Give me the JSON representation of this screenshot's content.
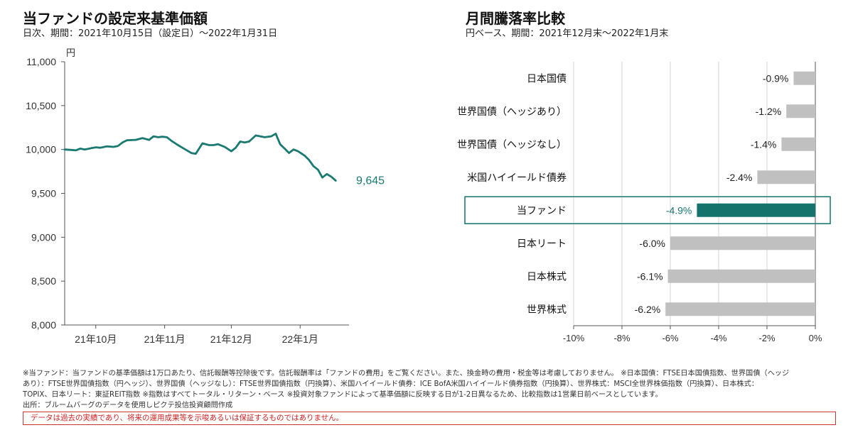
{
  "line_chart": {
    "title": "当ファンドの設定来基準価額",
    "subtitle": "日次、期間：2021年10月15日（設定日）～2022年1月31日",
    "unit": "円",
    "last_value_label": "9,645",
    "line_color": "#1a7a72"
  },
  "bar_chart": {
    "title": "月間騰落率比較",
    "subtitle": "円ベース、期間：2021年12月末～2022年1月末",
    "highlight_color": "#14736b",
    "bar_color": "#c0c0c0"
  },
  "notes": {
    "line1": "※当ファンド：当ファンドの基準価額は1万口あたり、信託報酬等控除後です。信託報酬率は「ファンドの費用」をご覧ください。また、換金時の費用・税金等は考慮しておりません。 ※日本国債：FTSE日本国債指数、世界国債（ヘッジ",
    "line2": "あり）：FTSE世界国債指数（円ヘッジ）、世界国債（ヘッジなし）：FTSE世界国債指数（円換算）、米国ハイイールド債券：ICE BofA米国ハイイールド債券指数（円換算）、世界株式：MSCI全世界株価指数（円換算）、日本株式：",
    "line3": "TOPIX、日本リート：東証REIT指数 ※指数はすべてトータル・リターン・ベース ※投資対象ファンドによって基準価額に反映する日が1-2日異なるため、比較指数は1営業日前ベースとしています。",
    "source": "出所：ブルームバーグのデータを使用しピクテ投信投資顧問作成",
    "disclaimer": "データは過去の実績であり、将来の運用成果等を示唆あるいは保証するものではありません。"
  },
  "chart_data": [
    {
      "type": "line",
      "title": "当ファンドの設定来基準価額",
      "ylabel": "円",
      "ylim": [
        8000,
        11000
      ],
      "yticks": [
        8000,
        8500,
        9000,
        9500,
        10000,
        10500,
        11000
      ],
      "ytick_labels": [
        "8,000",
        "8,500",
        "9,000",
        "9,500",
        "10,000",
        "10,500",
        "11,000"
      ],
      "xlim": [
        "2021-10-01",
        "2022-02-06"
      ],
      "xticks": [
        "2021-10-15",
        "2021-11-15",
        "2021-12-15",
        "2022-01-15"
      ],
      "xtick_labels": [
        "21年10月",
        "21年11月",
        "21年12月",
        "22年1月"
      ],
      "grid": false,
      "series": [
        {
          "x": [
            "2021-10-01",
            "2021-10-04",
            "2021-10-06",
            "2021-10-08",
            "2021-10-10",
            "2021-10-13",
            "2021-10-15",
            "2021-10-17",
            "2021-10-20",
            "2021-10-23",
            "2021-10-25",
            "2021-10-27",
            "2021-10-29",
            "2021-11-02",
            "2021-11-05",
            "2021-11-08",
            "2021-11-10",
            "2021-11-12",
            "2021-11-14",
            "2021-11-16",
            "2021-11-18",
            "2021-11-21",
            "2021-11-23",
            "2021-11-25",
            "2021-11-27",
            "2021-11-29",
            "2021-12-02",
            "2021-12-05",
            "2021-12-07",
            "2021-12-09",
            "2021-12-12",
            "2021-12-15",
            "2021-12-17",
            "2021-12-19",
            "2021-12-21",
            "2021-12-23",
            "2021-12-26",
            "2021-12-28",
            "2021-12-30",
            "2022-01-02",
            "2022-01-04",
            "2022-01-06",
            "2022-01-08",
            "2022-01-10",
            "2022-01-12",
            "2022-01-14",
            "2022-01-17",
            "2022-01-19",
            "2022-01-21",
            "2022-01-23",
            "2022-01-25",
            "2022-01-27",
            "2022-01-29",
            "2022-01-31"
          ],
          "y": [
            10000,
            9995,
            9990,
            10010,
            10000,
            10015,
            10025,
            10020,
            10035,
            10030,
            10040,
            10080,
            10105,
            10110,
            10130,
            10110,
            10150,
            10140,
            10145,
            10140,
            10100,
            10050,
            10020,
            9990,
            9960,
            9950,
            10070,
            10050,
            10050,
            10060,
            10030,
            9980,
            10020,
            10090,
            10080,
            10090,
            10160,
            10150,
            10140,
            10150,
            10180,
            10060,
            10010,
            9960,
            10000,
            9980,
            9930,
            9880,
            9810,
            9770,
            9680,
            9720,
            9690,
            9645
          ]
        }
      ]
    },
    {
      "type": "bar",
      "orientation": "horizontal",
      "title": "月間騰落率比較",
      "xlim": [
        -10,
        0
      ],
      "xticks": [
        -10,
        -8,
        -6,
        -4,
        -2,
        0
      ],
      "xtick_labels": [
        "-10%",
        "-8%",
        "-6%",
        "-4%",
        "-2%",
        "0%"
      ],
      "grid": true,
      "categories": [
        "日本国債",
        "世界国債（ヘッジあり）",
        "世界国債（ヘッジなし）",
        "米国ハイイールド債券",
        "当ファンド",
        "日本リート",
        "日本株式",
        "世界株式"
      ],
      "values": [
        -0.9,
        -1.2,
        -1.4,
        -2.4,
        -4.9,
        -6.0,
        -6.1,
        -6.2
      ],
      "value_labels": [
        "-0.9%",
        "-1.2%",
        "-1.4%",
        "-2.4%",
        "-4.9%",
        "-6.0%",
        "-6.1%",
        "-6.2%"
      ],
      "highlight_category": "当ファンド"
    }
  ]
}
